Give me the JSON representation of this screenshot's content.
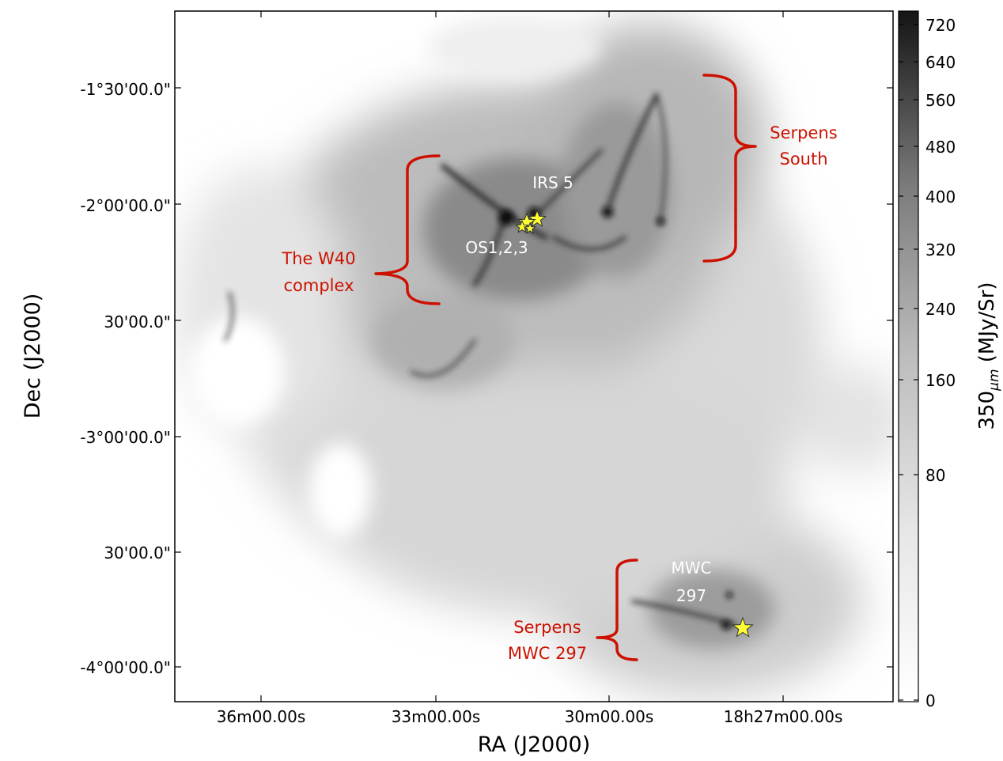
{
  "image": {
    "subject": "far-infrared intensity map",
    "colormap": "grayscale"
  },
  "axes": {
    "xlabel": "RA (J2000)",
    "ylabel": "Dec (J2000)",
    "x_ticks": [
      "36m00.00s",
      "33m00.00s",
      "30m00.00s",
      "18h27m00.00s"
    ],
    "y_ticks": [
      "-1°30'00.0\"",
      "-2°00'00.0\"",
      "30'00.0\"",
      "-3°00'00.0\"",
      "30'00.0\"",
      "-4°00'00.0\""
    ]
  },
  "colorbar": {
    "label_prefix": "350",
    "label_unit_symbol": "μm",
    "label_suffix": " (MJy/Sr)",
    "ticks": [
      "720",
      "640",
      "560",
      "480",
      "400",
      "320",
      "240",
      "160",
      "80",
      "0"
    ]
  },
  "annotations": {
    "serpens_south": [
      "Serpens",
      "South"
    ],
    "w40": [
      "The W40",
      "complex"
    ],
    "irs5": "IRS 5",
    "os123": "OS1,2,3",
    "mwc_star": [
      "MWC",
      "297"
    ],
    "serpens_mwc": [
      "Serpens",
      "MWC 297"
    ]
  },
  "colors": {
    "annotation_red": "#cc1100",
    "star_fill": "#ffff33"
  }
}
